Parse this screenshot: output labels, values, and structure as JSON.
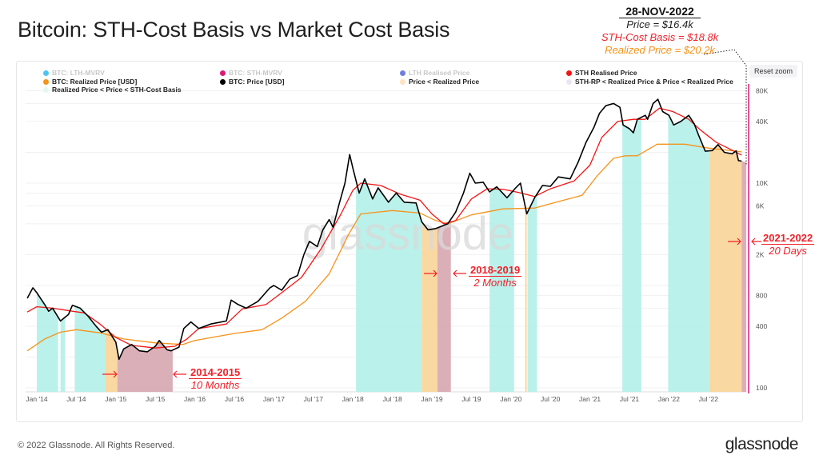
{
  "title": "Bitcoin: STH-Cost Basis vs Market Cost Basis",
  "annotation": {
    "date": "28-NOV-2022",
    "price": "Price = $16.4k",
    "sth_cost_basis": "STH-Cost Basis = $18.8k",
    "realized_price": "Realized Price = $20.2k"
  },
  "reset_zoom": "Reset zoom",
  "footer": "© 2022 Glassnode. All Rights Reserved.",
  "logo": "glassnode",
  "watermark": "glassnode",
  "legend": [
    {
      "label": "BTC: LTH-MVRV",
      "color": "#4dc4f5",
      "active": false
    },
    {
      "label": "BTC: STH-MVRV",
      "color": "#e0177a",
      "active": false
    },
    {
      "label": "LTH Realised Price",
      "color": "#6f7fe0",
      "active": false
    },
    {
      "label": "STH Realised Price",
      "color": "#f51414",
      "active": true
    },
    {
      "label": "BTC: Realized Price [USD]",
      "color": "#f7931a",
      "active": true
    },
    {
      "label": "BTC: Price [USD]",
      "color": "#000000",
      "active": true
    },
    {
      "label": "Price < Realized Price",
      "color": "#fde3c0",
      "active": true
    },
    {
      "label": "STH-RP < Realized Price & Price < Realized Price",
      "color": "#ece4f4",
      "active": true
    },
    {
      "label": "Realized Price < Price < STH-Cost Basis",
      "color": "#e3f7f5",
      "active": true
    }
  ],
  "callouts": [
    {
      "years": "2014-2015",
      "duration": "10 Months"
    },
    {
      "years": "2018-2019",
      "duration": "2 Months"
    },
    {
      "years": "2021-2022",
      "duration": "20 Days"
    }
  ],
  "colors": {
    "price": "#000000",
    "sth": "#f51414",
    "realized": "#f7931a",
    "teal": "#b3efe9",
    "orange": "#fad497",
    "mauve": "#d7a6b0",
    "pink_line": "#e0177a"
  },
  "chart_data": {
    "type": "line",
    "title": "Bitcoin: STH-Cost Basis vs Market Cost Basis",
    "yscale": "log",
    "ylim": [
      100,
      100000
    ],
    "xlim": [
      2013.85,
      2022.98
    ],
    "y_ticks": [
      {
        "v": 100,
        "label": "100"
      },
      {
        "v": 400,
        "label": "400"
      },
      {
        "v": 800,
        "label": "800"
      },
      {
        "v": 2000,
        "label": "2K"
      },
      {
        "v": 6000,
        "label": "6K"
      },
      {
        "v": 10000,
        "label": "10K"
      },
      {
        "v": 40000,
        "label": "40K"
      },
      {
        "v": 80000,
        "label": "80K"
      }
    ],
    "x_ticks": [
      {
        "t": 2014.0,
        "label": "Jan '14"
      },
      {
        "t": 2014.5,
        "label": "Jul '14"
      },
      {
        "t": 2015.0,
        "label": "Jan '15"
      },
      {
        "t": 2015.5,
        "label": "Jul '15"
      },
      {
        "t": 2016.0,
        "label": "Jan '16"
      },
      {
        "t": 2016.5,
        "label": "Jul '16"
      },
      {
        "t": 2017.0,
        "label": "Jan '17"
      },
      {
        "t": 2017.5,
        "label": "Jul '17"
      },
      {
        "t": 2018.0,
        "label": "Jan '18"
      },
      {
        "t": 2018.5,
        "label": "Jul '18"
      },
      {
        "t": 2019.0,
        "label": "Jan '19"
      },
      {
        "t": 2019.5,
        "label": "Jul '19"
      },
      {
        "t": 2020.0,
        "label": "Jan '20"
      },
      {
        "t": 2020.5,
        "label": "Jul '20"
      },
      {
        "t": 2021.0,
        "label": "Jan '21"
      },
      {
        "t": 2021.5,
        "label": "Jul '21"
      },
      {
        "t": 2022.0,
        "label": "Jan '22"
      },
      {
        "t": 2022.5,
        "label": "Jul '22"
      }
    ],
    "series": [
      {
        "name": "BTC: Price [USD]",
        "key": "price",
        "points": [
          [
            2013.88,
            750
          ],
          [
            2013.95,
            950
          ],
          [
            2014.0,
            850
          ],
          [
            2014.1,
            650
          ],
          [
            2014.15,
            560
          ],
          [
            2014.2,
            600
          ],
          [
            2014.3,
            450
          ],
          [
            2014.4,
            520
          ],
          [
            2014.45,
            640
          ],
          [
            2014.55,
            600
          ],
          [
            2014.65,
            500
          ],
          [
            2014.75,
            400
          ],
          [
            2014.82,
            350
          ],
          [
            2014.9,
            370
          ],
          [
            2015.0,
            280
          ],
          [
            2015.04,
            190
          ],
          [
            2015.1,
            240
          ],
          [
            2015.2,
            265
          ],
          [
            2015.3,
            230
          ],
          [
            2015.4,
            225
          ],
          [
            2015.5,
            255
          ],
          [
            2015.55,
            290
          ],
          [
            2015.65,
            235
          ],
          [
            2015.7,
            230
          ],
          [
            2015.8,
            250
          ],
          [
            2015.86,
            380
          ],
          [
            2015.95,
            440
          ],
          [
            2016.05,
            380
          ],
          [
            2016.2,
            420
          ],
          [
            2016.4,
            450
          ],
          [
            2016.46,
            720
          ],
          [
            2016.55,
            650
          ],
          [
            2016.65,
            600
          ],
          [
            2016.8,
            700
          ],
          [
            2016.95,
            950
          ],
          [
            2017.0,
            1000
          ],
          [
            2017.1,
            900
          ],
          [
            2017.2,
            1150
          ],
          [
            2017.3,
            1250
          ],
          [
            2017.38,
            2000
          ],
          [
            2017.45,
            2700
          ],
          [
            2017.55,
            2400
          ],
          [
            2017.62,
            3500
          ],
          [
            2017.7,
            4400
          ],
          [
            2017.75,
            3700
          ],
          [
            2017.82,
            6000
          ],
          [
            2017.9,
            10000
          ],
          [
            2017.96,
            19000
          ],
          [
            2018.0,
            14000
          ],
          [
            2018.08,
            8000
          ],
          [
            2018.15,
            11000
          ],
          [
            2018.25,
            7000
          ],
          [
            2018.32,
            9000
          ],
          [
            2018.45,
            6500
          ],
          [
            2018.55,
            8000
          ],
          [
            2018.65,
            6500
          ],
          [
            2018.8,
            6400
          ],
          [
            2018.87,
            4200
          ],
          [
            2018.95,
            3500
          ],
          [
            2019.05,
            3600
          ],
          [
            2019.2,
            4000
          ],
          [
            2019.3,
            5200
          ],
          [
            2019.4,
            8000
          ],
          [
            2019.48,
            12500
          ],
          [
            2019.55,
            10000
          ],
          [
            2019.65,
            10200
          ],
          [
            2019.73,
            8200
          ],
          [
            2019.82,
            9200
          ],
          [
            2019.95,
            7200
          ],
          [
            2020.05,
            8800
          ],
          [
            2020.12,
            10000
          ],
          [
            2020.2,
            5000
          ],
          [
            2020.3,
            7200
          ],
          [
            2020.4,
            9500
          ],
          [
            2020.5,
            9300
          ],
          [
            2020.6,
            11500
          ],
          [
            2020.75,
            11000
          ],
          [
            2020.85,
            16000
          ],
          [
            2020.95,
            25000
          ],
          [
            2021.05,
            35000
          ],
          [
            2021.12,
            48000
          ],
          [
            2021.2,
            57000
          ],
          [
            2021.3,
            60000
          ],
          [
            2021.38,
            55000
          ],
          [
            2021.42,
            37000
          ],
          [
            2021.5,
            34000
          ],
          [
            2021.55,
            31000
          ],
          [
            2021.6,
            42000
          ],
          [
            2021.7,
            46000
          ],
          [
            2021.73,
            42000
          ],
          [
            2021.8,
            60000
          ],
          [
            2021.86,
            66000
          ],
          [
            2021.92,
            50000
          ],
          [
            2022.0,
            46000
          ],
          [
            2022.06,
            37000
          ],
          [
            2022.15,
            40000
          ],
          [
            2022.25,
            46000
          ],
          [
            2022.32,
            38000
          ],
          [
            2022.37,
            30000
          ],
          [
            2022.46,
            20500
          ],
          [
            2022.55,
            20800
          ],
          [
            2022.62,
            23800
          ],
          [
            2022.7,
            20000
          ],
          [
            2022.8,
            19300
          ],
          [
            2022.85,
            20700
          ],
          [
            2022.88,
            16600
          ],
          [
            2022.92,
            16400
          ]
        ]
      },
      {
        "name": "STH Realised Price",
        "key": "sth",
        "points": [
          [
            2013.88,
            550
          ],
          [
            2014.0,
            620
          ],
          [
            2014.2,
            600
          ],
          [
            2014.45,
            560
          ],
          [
            2014.6,
            540
          ],
          [
            2014.8,
            420
          ],
          [
            2015.0,
            310
          ],
          [
            2015.2,
            260
          ],
          [
            2015.5,
            245
          ],
          [
            2015.75,
            255
          ],
          [
            2015.9,
            300
          ],
          [
            2016.05,
            380
          ],
          [
            2016.4,
            420
          ],
          [
            2016.6,
            590
          ],
          [
            2016.9,
            650
          ],
          [
            2017.1,
            850
          ],
          [
            2017.35,
            1200
          ],
          [
            2017.6,
            2300
          ],
          [
            2017.85,
            5000
          ],
          [
            2018.0,
            8500
          ],
          [
            2018.1,
            10000
          ],
          [
            2018.35,
            9500
          ],
          [
            2018.6,
            7800
          ],
          [
            2018.85,
            6800
          ],
          [
            2019.0,
            5000
          ],
          [
            2019.15,
            4000
          ],
          [
            2019.3,
            4300
          ],
          [
            2019.5,
            7000
          ],
          [
            2019.7,
            8800
          ],
          [
            2019.9,
            8700
          ],
          [
            2020.1,
            8100
          ],
          [
            2020.3,
            7400
          ],
          [
            2020.5,
            8800
          ],
          [
            2020.8,
            10500
          ],
          [
            2021.0,
            15000
          ],
          [
            2021.15,
            28000
          ],
          [
            2021.35,
            40000
          ],
          [
            2021.55,
            42000
          ],
          [
            2021.7,
            42000
          ],
          [
            2021.88,
            54000
          ],
          [
            2022.05,
            50000
          ],
          [
            2022.25,
            42000
          ],
          [
            2022.4,
            33000
          ],
          [
            2022.6,
            25000
          ],
          [
            2022.8,
            21000
          ],
          [
            2022.92,
            18800
          ]
        ]
      },
      {
        "name": "BTC: Realized Price [USD]",
        "key": "realized",
        "points": [
          [
            2013.88,
            230
          ],
          [
            2014.1,
            300
          ],
          [
            2014.3,
            350
          ],
          [
            2014.5,
            370
          ],
          [
            2014.8,
            345
          ],
          [
            2015.1,
            300
          ],
          [
            2015.5,
            275
          ],
          [
            2015.85,
            265
          ],
          [
            2016.0,
            290
          ],
          [
            2016.5,
            340
          ],
          [
            2016.85,
            370
          ],
          [
            2017.1,
            480
          ],
          [
            2017.4,
            700
          ],
          [
            2017.7,
            1300
          ],
          [
            2017.95,
            3200
          ],
          [
            2018.1,
            5000
          ],
          [
            2018.5,
            5400
          ],
          [
            2018.85,
            5100
          ],
          [
            2019.05,
            4300
          ],
          [
            2019.2,
            4000
          ],
          [
            2019.5,
            4900
          ],
          [
            2019.9,
            5600
          ],
          [
            2020.3,
            5700
          ],
          [
            2020.6,
            6600
          ],
          [
            2020.9,
            7600
          ],
          [
            2021.1,
            12000
          ],
          [
            2021.3,
            17500
          ],
          [
            2021.45,
            18500
          ],
          [
            2021.6,
            18500
          ],
          [
            2021.85,
            24000
          ],
          [
            2022.2,
            24000
          ],
          [
            2022.5,
            22000
          ],
          [
            2022.92,
            20200
          ]
        ]
      }
    ],
    "bands": [
      {
        "type": "teal",
        "start": 2014.0,
        "end": 2014.27
      },
      {
        "type": "teal",
        "start": 2014.3,
        "end": 2014.36
      },
      {
        "type": "teal",
        "start": 2014.48,
        "end": 2014.87
      },
      {
        "type": "orange",
        "start": 2014.87,
        "end": 2015.02
      },
      {
        "type": "mauve",
        "start": 2015.02,
        "end": 2015.72
      },
      {
        "type": "teal",
        "start": 2018.04,
        "end": 2018.87
      },
      {
        "type": "orange",
        "start": 2018.87,
        "end": 2019.07
      },
      {
        "type": "mauve",
        "start": 2019.07,
        "end": 2019.24
      },
      {
        "type": "teal",
        "start": 2019.73,
        "end": 2020.04
      },
      {
        "type": "orange",
        "start": 2020.18,
        "end": 2020.2
      },
      {
        "type": "teal",
        "start": 2020.21,
        "end": 2020.33
      },
      {
        "type": "teal",
        "start": 2021.41,
        "end": 2021.65
      },
      {
        "type": "teal",
        "start": 2021.99,
        "end": 2022.51
      },
      {
        "type": "orange",
        "start": 2022.51,
        "end": 2022.92
      },
      {
        "type": "mauve",
        "start": 2022.92,
        "end": 2022.98
      }
    ]
  }
}
